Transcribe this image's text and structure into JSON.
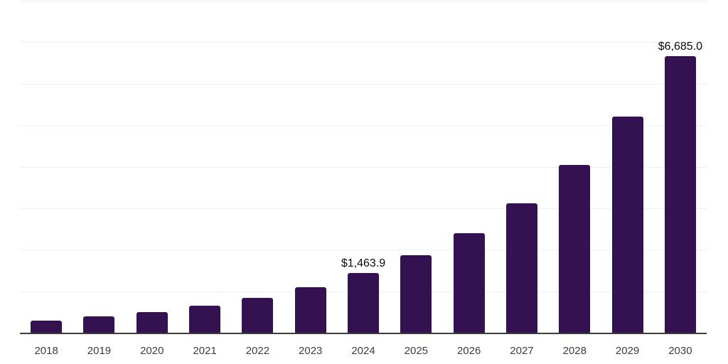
{
  "chart_data": {
    "type": "bar",
    "title": "",
    "xlabel": "",
    "ylabel": "",
    "categories": [
      "2018",
      "2019",
      "2020",
      "2021",
      "2022",
      "2023",
      "2024",
      "2025",
      "2026",
      "2027",
      "2028",
      "2029",
      "2030"
    ],
    "values": [
      310,
      415,
      510,
      665,
      855,
      1110,
      1463.9,
      1885,
      2420,
      3140,
      4060,
      5220,
      6685
    ],
    "data_labels": [
      "",
      "",
      "",
      "",
      "",
      "",
      "$1,463.9",
      "",
      "",
      "",
      "",
      "",
      "$6,685.0"
    ],
    "ylim": [
      0,
      8000
    ],
    "gridline_step": 1000,
    "grid": true,
    "legend": false,
    "colors": {
      "bar": "#341150",
      "axis_line": "#3d3d3d",
      "gridline": "#f1f1f1",
      "tick_label": "#3d3d3d",
      "value_label": "#0a0a0a",
      "background": "#ffffff"
    }
  }
}
